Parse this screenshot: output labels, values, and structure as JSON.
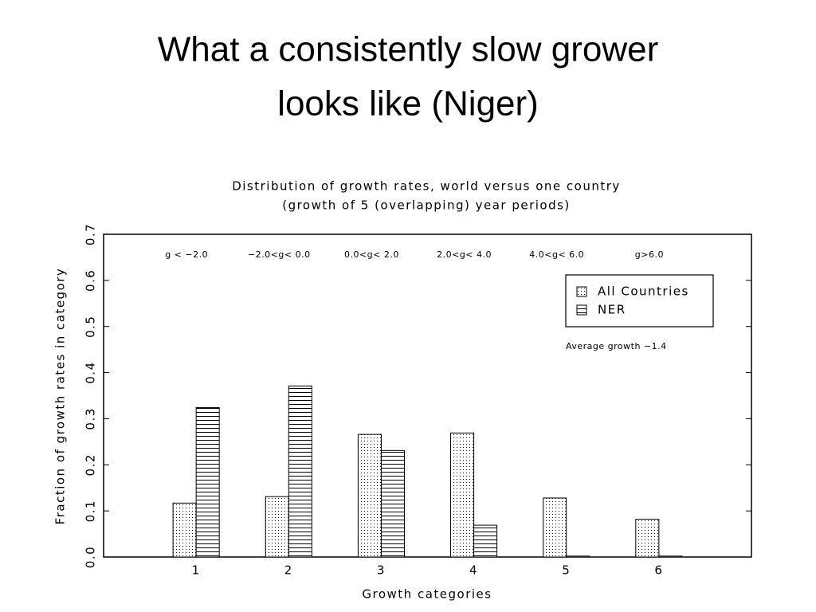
{
  "slide_title": [
    "What a consistently slow grower",
    "looks like (Niger)"
  ],
  "chart_data": {
    "type": "bar",
    "title": "Distribution of growth rates, world versus one country",
    "subtitle": "(growth of 5 (overlapping) year periods)",
    "x_label": "Growth categories",
    "y_label": "Fraction of growth rates in category",
    "x": [
      1,
      2,
      3,
      4,
      5,
      6
    ],
    "xlim": [
      0,
      7
    ],
    "xticks": [
      1,
      2,
      3,
      4,
      5,
      6
    ],
    "ylim": [
      0,
      0.7
    ],
    "yticks": [
      {
        "value": 0,
        "label": "0.0"
      },
      0.1,
      0.2,
      0.3,
      0.4,
      0.5,
      0.6,
      0.7
    ],
    "category_ranges": [
      "g < −2.0",
      "−2.0<g< 0.0",
      "0.0<g< 2.0",
      "2.0<g< 4.0",
      "4.0<g< 6.0",
      "g>6.0"
    ],
    "series": [
      {
        "name": "All Countries",
        "color": "#000000",
        "pattern": "dots",
        "values": [
          0.117,
          0.131,
          0.266,
          0.269,
          0.128,
          0.082
        ]
      },
      {
        "name": "NER",
        "color": "#000000",
        "pattern": "hstripes",
        "values": [
          0.324,
          0.371,
          0.231,
          0.069,
          0.002,
          0.002
        ]
      }
    ],
    "legend": "upper right",
    "annotation": "Average growth −1.4"
  }
}
